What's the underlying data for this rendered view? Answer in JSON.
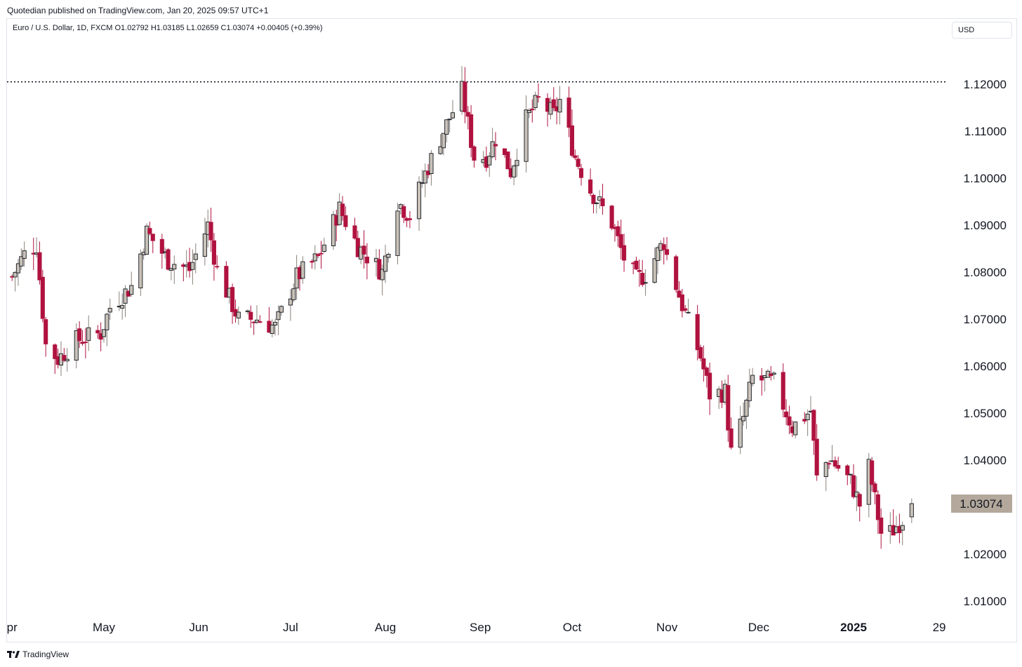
{
  "header": {
    "publisher_line": "Quotedian published on TradingView.com, Jan 20, 2025 09:57 UTC+1",
    "legend_line": "Euro / U.S. Dollar, 1D, FXCM  O1.02792  H1.03185  L1.02659  C1.03074  +0.00405 (+0.39%)",
    "currency_button": "USD"
  },
  "footer": {
    "logo_text": "TradingView"
  },
  "colors": {
    "up": "#c9c2b8",
    "down": "#b0123f",
    "dotted_line": "#131722",
    "price_tag": "#b3a89b"
  },
  "chart_data": {
    "type": "candlestick",
    "symbol": "Euro / U.S. Dollar",
    "interval": "1D",
    "source": "FXCM",
    "last": {
      "open": 1.02792,
      "high": 1.03185,
      "low": 1.02659,
      "close": 1.03074,
      "change": 0.00405,
      "change_pct": 0.39,
      "label": "1.03074"
    },
    "ylim": [
      1.0045,
      1.1245
    ],
    "y_ticks": [
      {
        "v": 1.12,
        "label": "1.12000"
      },
      {
        "v": 1.11,
        "label": "1.11000"
      },
      {
        "v": 1.1,
        "label": "1.10000"
      },
      {
        "v": 1.09,
        "label": "1.09000"
      },
      {
        "v": 1.08,
        "label": "1.08000"
      },
      {
        "v": 1.07,
        "label": "1.07000"
      },
      {
        "v": 1.06,
        "label": "1.06000"
      },
      {
        "v": 1.05,
        "label": "1.05000"
      },
      {
        "v": 1.04,
        "label": "1.04000"
      },
      {
        "v": 1.03,
        "label": "1.03000"
      },
      {
        "v": 1.02,
        "label": "1.02000"
      },
      {
        "v": 1.01,
        "label": "1.01000"
      }
    ],
    "x_ticks": [
      {
        "date": "2024-04-01",
        "label": "pr",
        "bold": false
      },
      {
        "date": "2024-05-01",
        "label": "May",
        "bold": false
      },
      {
        "date": "2024-06-01",
        "label": "Jun",
        "bold": false
      },
      {
        "date": "2024-07-01",
        "label": "Jul",
        "bold": false
      },
      {
        "date": "2024-08-01",
        "label": "Aug",
        "bold": false
      },
      {
        "date": "2024-09-01",
        "label": "Sep",
        "bold": false
      },
      {
        "date": "2024-10-01",
        "label": "Oct",
        "bold": false
      },
      {
        "date": "2024-11-01",
        "label": "Nov",
        "bold": false
      },
      {
        "date": "2024-12-01",
        "label": "Dec",
        "bold": false
      },
      {
        "date": "2025-01-01",
        "label": "2025",
        "bold": true
      },
      {
        "date": "2025-01-29",
        "label": "29",
        "bold": false
      }
    ],
    "horizontal_line": {
      "value": 1.1205,
      "style": "dotted"
    },
    "date_range": [
      "2024-04-01",
      "2025-01-20"
    ],
    "close_waypoints": [
      [
        "2024-04-01",
        1.079
      ],
      [
        "2024-04-05",
        1.0838
      ],
      [
        "2024-04-09",
        1.0858
      ],
      [
        "2024-04-12",
        1.0645
      ],
      [
        "2024-04-16",
        1.0615
      ],
      [
        "2024-04-22",
        1.0655
      ],
      [
        "2024-04-30",
        1.067
      ],
      [
        "2024-05-03",
        1.0725
      ],
      [
        "2024-05-10",
        1.077
      ],
      [
        "2024-05-15",
        1.0885
      ],
      [
        "2024-05-22",
        1.0825
      ],
      [
        "2024-05-29",
        1.0805
      ],
      [
        "2024-06-04",
        1.09
      ],
      [
        "2024-06-07",
        1.0805
      ],
      [
        "2024-06-14",
        1.07
      ],
      [
        "2024-06-20",
        1.07
      ],
      [
        "2024-06-26",
        1.0683
      ],
      [
        "2024-07-03",
        1.079
      ],
      [
        "2024-07-10",
        1.083
      ],
      [
        "2024-07-17",
        1.0935
      ],
      [
        "2024-07-23",
        1.0855
      ],
      [
        "2024-07-31",
        1.08
      ],
      [
        "2024-08-05",
        1.095
      ],
      [
        "2024-08-09",
        1.092
      ],
      [
        "2024-08-14",
        1.101
      ],
      [
        "2024-08-20",
        1.11
      ],
      [
        "2024-08-26",
        1.1185
      ],
      [
        "2024-08-30",
        1.1045
      ],
      [
        "2024-09-03",
        1.1045
      ],
      [
        "2024-09-06",
        1.1085
      ],
      [
        "2024-09-11",
        1.1015
      ],
      [
        "2024-09-16",
        1.1125
      ],
      [
        "2024-09-20",
        1.1165
      ],
      [
        "2024-09-25",
        1.1135
      ],
      [
        "2024-09-27",
        1.1165
      ],
      [
        "2024-10-02",
        1.1045
      ],
      [
        "2024-10-07",
        1.0975
      ],
      [
        "2024-10-14",
        1.0905
      ],
      [
        "2024-10-18",
        1.083
      ],
      [
        "2024-10-22",
        1.0785
      ],
      [
        "2024-10-25",
        1.0795
      ],
      [
        "2024-10-31",
        1.0865
      ],
      [
        "2024-11-01",
        1.0835
      ],
      [
        "2024-11-06",
        1.073
      ],
      [
        "2024-11-12",
        1.062
      ],
      [
        "2024-11-15",
        1.054
      ],
      [
        "2024-11-20",
        1.0545
      ],
      [
        "2024-11-22",
        1.0415
      ],
      [
        "2024-11-26",
        1.049
      ],
      [
        "2024-11-29",
        1.0575
      ],
      [
        "2024-12-06",
        1.0565
      ],
      [
        "2024-12-12",
        1.047
      ],
      [
        "2024-12-18",
        1.0505
      ],
      [
        "2024-12-20",
        1.036
      ],
      [
        "2024-12-24",
        1.0405
      ],
      [
        "2024-12-31",
        1.0355
      ],
      [
        "2025-01-03",
        1.0305
      ],
      [
        "2025-01-06",
        1.0385
      ],
      [
        "2025-01-10",
        1.0245
      ],
      [
        "2025-01-13",
        1.0245
      ],
      [
        "2025-01-17",
        1.0275
      ],
      [
        "2025-01-20",
        1.03074
      ]
    ]
  }
}
